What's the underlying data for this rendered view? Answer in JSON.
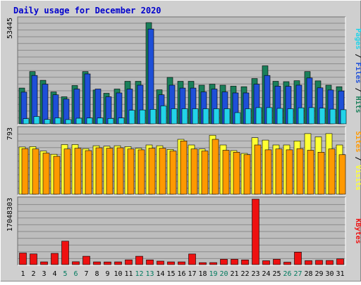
{
  "chart_data": {
    "type": "bar",
    "title": "Daily usage for December 2020",
    "categories": [
      "1",
      "2",
      "3",
      "4",
      "5",
      "6",
      "7",
      "8",
      "9",
      "10",
      "11",
      "12",
      "13",
      "14",
      "15",
      "16",
      "17",
      "18",
      "19",
      "20",
      "21",
      "22",
      "23",
      "24",
      "25",
      "26",
      "27",
      "28",
      "29",
      "30",
      "31"
    ],
    "weekend_days": [
      "5",
      "6",
      "12",
      "13",
      "19",
      "20",
      "26",
      "27"
    ],
    "panels": [
      {
        "name": "traffic",
        "ylabel_parts": [
          "Pages",
          "Files",
          "Hits"
        ],
        "max_label": "53445",
        "ylim": [
          0,
          53445
        ],
        "series": [
          {
            "name": "Hits",
            "values": [
              18500,
              27000,
              22500,
              16500,
              14000,
              19800,
              27000,
              17500,
              15800,
              18000,
              22000,
              22000,
              52300,
              17600,
              24000,
              22000,
              22000,
              20000,
              20500,
              20000,
              19500,
              19200,
              23400,
              30000,
              22000,
              21800,
              22300,
              27000,
              22200,
              20000,
              19200
            ]
          },
          {
            "name": "Files",
            "values": [
              16400,
              25000,
              20500,
              15000,
              12800,
              18000,
              25800,
              18000,
              14000,
              16000,
              18000,
              20000,
              49000,
              15000,
              20000,
              18500,
              18500,
              16500,
              18000,
              16500,
              16000,
              16000,
              20500,
              25000,
              19500,
              19400,
              20000,
              23700,
              18600,
              17500,
              17000
            ]
          },
          {
            "name": "Pages",
            "values": [
              2700,
              3800,
              2300,
              3100,
              2200,
              2900,
              3000,
              3000,
              2800,
              3000,
              7000,
              7200,
              7500,
              9300,
              7800,
              7800,
              7800,
              7800,
              7800,
              7800,
              5800,
              7800,
              8400,
              8400,
              8000,
              7800,
              8300,
              8400,
              8100,
              7600,
              7300
            ]
          }
        ]
      },
      {
        "name": "visitors",
        "ylabel_parts": [
          "Sites",
          "Visits"
        ],
        "max_label": "793",
        "ylim": [
          0,
          793
        ],
        "series": [
          {
            "name": "Visits",
            "values": [
              585,
              590,
              535,
              495,
              615,
              615,
              565,
              600,
              595,
              600,
              590,
              570,
              610,
              600,
              555,
              680,
              610,
              560,
              730,
              610,
              540,
              505,
              700,
              670,
              610,
              610,
              660,
              750,
              710,
              750,
              610
            ]
          },
          {
            "name": "Sites",
            "values": [
              565,
              560,
              510,
              470,
              560,
              570,
              540,
              575,
              570,
              575,
              560,
              550,
              570,
              570,
              535,
              660,
              560,
              535,
              680,
              545,
              520,
              490,
              610,
              550,
              560,
              550,
              565,
              545,
              520,
              560,
              490
            ]
          }
        ]
      },
      {
        "name": "kbytes",
        "ylabel_parts": [
          "KBytes"
        ],
        "max_label": "17048303",
        "ylim": [
          0,
          17048303
        ],
        "series": [
          {
            "name": "KBytes",
            "values": [
              3020000,
              2780000,
              710000,
              2930000,
              6100000,
              750000,
              2180000,
              720000,
              690000,
              720000,
              1240000,
              2180000,
              1220000,
              920000,
              710000,
              710000,
              2760000,
              520000,
              540000,
              1400000,
              1400000,
              1220000,
              17048303,
              1000000,
              1400000,
              640000,
              3240000,
              1020000,
              1110000,
              1080000,
              1500000
            ]
          }
        ]
      }
    ],
    "colors": {
      "hits": "#1a7f5a",
      "files": "#1e4fd8",
      "pages": "#22d3e8",
      "visits": "#ffff33",
      "sites": "#ff9900",
      "kbytes": "#ee1111",
      "title": "#0000cc",
      "weekend_label": "#007a5e",
      "plot_bg": "#bdbdbd",
      "frame_bg": "#cfcfcf"
    }
  }
}
